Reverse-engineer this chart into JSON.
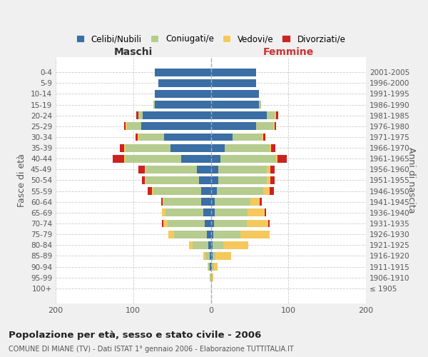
{
  "age_groups": [
    "100+",
    "95-99",
    "90-94",
    "85-89",
    "80-84",
    "75-79",
    "70-74",
    "65-69",
    "60-64",
    "55-59",
    "50-54",
    "45-49",
    "40-44",
    "35-39",
    "30-34",
    "25-29",
    "20-24",
    "15-19",
    "10-14",
    "5-9",
    "0-4"
  ],
  "birth_years": [
    "≤ 1905",
    "1906-1910",
    "1911-1915",
    "1916-1920",
    "1921-1925",
    "1926-1930",
    "1931-1935",
    "1936-1940",
    "1941-1945",
    "1946-1950",
    "1951-1955",
    "1956-1960",
    "1961-1965",
    "1966-1970",
    "1971-1975",
    "1976-1980",
    "1981-1985",
    "1986-1990",
    "1991-1995",
    "1996-2000",
    "2001-2005"
  ],
  "males": {
    "celibi": [
      0,
      0,
      1,
      1,
      3,
      5,
      8,
      10,
      12,
      12,
      15,
      18,
      38,
      52,
      60,
      90,
      88,
      72,
      72,
      68,
      72
    ],
    "coniugati": [
      0,
      1,
      2,
      6,
      20,
      42,
      48,
      48,
      48,
      62,
      68,
      65,
      72,
      58,
      32,
      18,
      5,
      2,
      0,
      0,
      0
    ],
    "vedovi": [
      0,
      0,
      1,
      3,
      5,
      8,
      5,
      5,
      2,
      2,
      2,
      2,
      2,
      2,
      2,
      2,
      0,
      0,
      0,
      0,
      0
    ],
    "divorziati": [
      0,
      0,
      0,
      0,
      0,
      0,
      2,
      0,
      2,
      5,
      4,
      8,
      14,
      5,
      3,
      2,
      3,
      0,
      0,
      0,
      0
    ]
  },
  "females": {
    "nubili": [
      0,
      0,
      1,
      2,
      2,
      3,
      4,
      5,
      5,
      8,
      10,
      10,
      12,
      18,
      28,
      58,
      72,
      62,
      62,
      58,
      58
    ],
    "coniugate": [
      0,
      1,
      3,
      4,
      14,
      35,
      42,
      42,
      46,
      60,
      62,
      62,
      72,
      58,
      38,
      22,
      10,
      3,
      0,
      0,
      0
    ],
    "vedove": [
      0,
      2,
      5,
      20,
      32,
      38,
      28,
      22,
      12,
      8,
      5,
      5,
      2,
      2,
      2,
      2,
      2,
      0,
      0,
      0,
      0
    ],
    "divorziate": [
      0,
      0,
      0,
      0,
      0,
      0,
      2,
      2,
      3,
      5,
      5,
      5,
      12,
      5,
      2,
      2,
      3,
      0,
      0,
      0,
      0
    ]
  },
  "colors": {
    "celibi": "#3a6ea5",
    "coniugati": "#b5cc8e",
    "vedovi": "#f5c85c",
    "divorziati": "#cc2222"
  },
  "xlim": 200,
  "title": "Popolazione per età, sesso e stato civile - 2006",
  "subtitle": "COMUNE DI MIANE (TV) - Dati ISTAT 1° gennaio 2006 - Elaborazione TUTTITALIA.IT",
  "ylabel_left": "Fasce di età",
  "ylabel_right": "Anni di nascita",
  "label_maschi": "Maschi",
  "label_femmine": "Femmine",
  "legend_labels": [
    "Celibi/Nubili",
    "Coniugati/e",
    "Vedovi/e",
    "Divorziati/e"
  ],
  "bg_color": "#f0f0f0",
  "plot_bg": "#ffffff"
}
